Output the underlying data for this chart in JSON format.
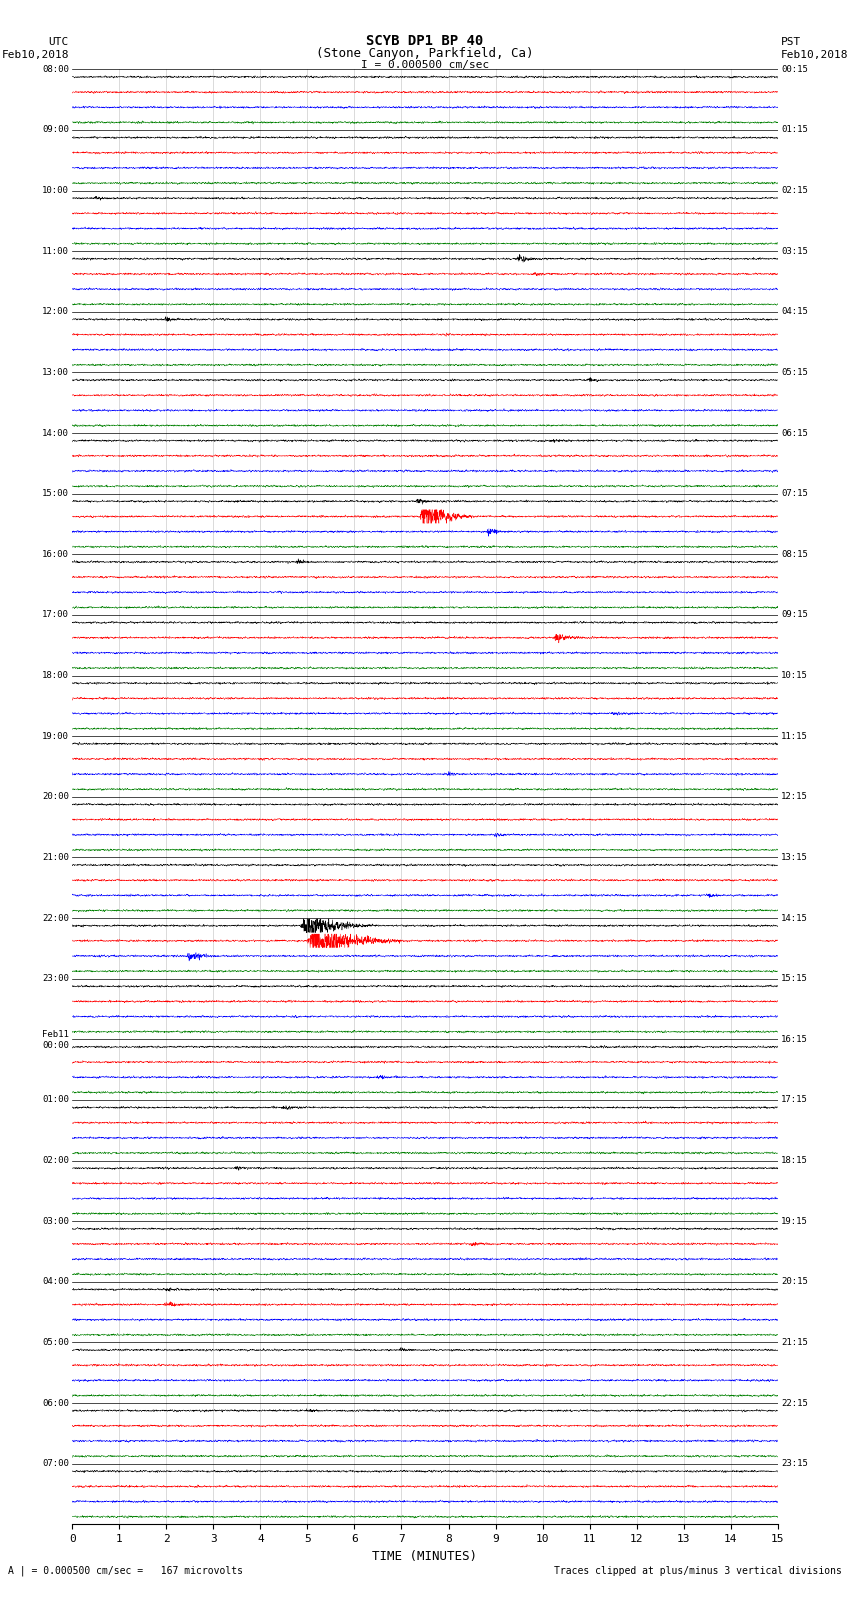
{
  "title_line1": "SCYB DP1 BP 40",
  "title_line2": "(Stone Canyon, Parkfield, Ca)",
  "scale_label": "I = 0.000500 cm/sec",
  "utc_label": "UTC",
  "utc_date": "Feb10,2018",
  "pst_label": "PST",
  "pst_date": "Feb10,2018",
  "xlabel": "TIME (MINUTES)",
  "bottom_left": "A | = 0.000500 cm/sec =   167 microvolts",
  "bottom_right": "Traces clipped at plus/minus 3 vertical divisions",
  "background_color": "#ffffff",
  "trace_colors": [
    "black",
    "red",
    "blue",
    "green"
  ],
  "utc_times": [
    "08:00",
    "09:00",
    "10:00",
    "11:00",
    "12:00",
    "13:00",
    "14:00",
    "15:00",
    "16:00",
    "17:00",
    "18:00",
    "19:00",
    "20:00",
    "21:00",
    "22:00",
    "23:00",
    "Feb11\n00:00",
    "01:00",
    "02:00",
    "03:00",
    "04:00",
    "05:00",
    "06:00",
    "07:00"
  ],
  "pst_times": [
    "00:15",
    "01:15",
    "02:15",
    "03:15",
    "04:15",
    "05:15",
    "06:15",
    "07:15",
    "08:15",
    "09:15",
    "10:15",
    "11:15",
    "12:15",
    "13:15",
    "14:15",
    "15:15",
    "16:15",
    "17:15",
    "18:15",
    "19:15",
    "20:15",
    "21:15",
    "22:15",
    "23:15"
  ],
  "num_rows": 24,
  "traces_per_row": 4,
  "minutes": 15,
  "noise_scale": 0.012,
  "event_params": [
    {
      "row": 7,
      "trace": 1,
      "minute": 7.5,
      "scale": 18.0,
      "duration": 0.25
    },
    {
      "row": 7,
      "trace": 2,
      "minute": 8.85,
      "scale": 4.0,
      "duration": 0.12
    },
    {
      "row": 7,
      "trace": 0,
      "minute": 7.35,
      "scale": 3.0,
      "duration": 0.12
    },
    {
      "row": 8,
      "trace": 0,
      "minute": 4.8,
      "scale": 2.5,
      "duration": 0.12
    },
    {
      "row": 9,
      "trace": 1,
      "minute": 10.3,
      "scale": 5.0,
      "duration": 0.18
    },
    {
      "row": 14,
      "trace": 2,
      "minute": 2.5,
      "scale": 6.0,
      "duration": 0.15
    },
    {
      "row": 14,
      "trace": 0,
      "minute": 5.0,
      "scale": 14.0,
      "duration": 0.35
    },
    {
      "row": 14,
      "trace": 1,
      "minute": 5.2,
      "scale": 18.0,
      "duration": 0.45
    },
    {
      "row": 3,
      "trace": 0,
      "minute": 9.5,
      "scale": 3.5,
      "duration": 0.15
    },
    {
      "row": 3,
      "trace": 1,
      "minute": 9.8,
      "scale": 2.5,
      "duration": 0.12
    },
    {
      "row": 4,
      "trace": 0,
      "minute": 2.0,
      "scale": 2.5,
      "duration": 0.12
    },
    {
      "row": 16,
      "trace": 2,
      "minute": 6.5,
      "scale": 2.5,
      "duration": 0.15
    },
    {
      "row": 10,
      "trace": 2,
      "minute": 11.5,
      "scale": 2.0,
      "duration": 0.12
    },
    {
      "row": 11,
      "trace": 2,
      "minute": 8.0,
      "scale": 2.0,
      "duration": 0.12
    },
    {
      "row": 12,
      "trace": 2,
      "minute": 9.0,
      "scale": 2.0,
      "duration": 0.12
    },
    {
      "row": 19,
      "trace": 1,
      "minute": 8.5,
      "scale": 2.5,
      "duration": 0.12
    },
    {
      "row": 20,
      "trace": 0,
      "minute": 2.0,
      "scale": 2.0,
      "duration": 0.12
    },
    {
      "row": 20,
      "trace": 1,
      "minute": 2.0,
      "scale": 3.0,
      "duration": 0.15
    },
    {
      "row": 5,
      "trace": 0,
      "minute": 11.0,
      "scale": 2.0,
      "duration": 0.12
    },
    {
      "row": 2,
      "trace": 0,
      "minute": 0.5,
      "scale": 2.0,
      "duration": 0.12
    },
    {
      "row": 6,
      "trace": 0,
      "minute": 10.2,
      "scale": 2.0,
      "duration": 0.12
    },
    {
      "row": 13,
      "trace": 2,
      "minute": 13.5,
      "scale": 2.0,
      "duration": 0.12
    },
    {
      "row": 17,
      "trace": 0,
      "minute": 4.5,
      "scale": 2.5,
      "duration": 0.15
    },
    {
      "row": 18,
      "trace": 0,
      "minute": 3.5,
      "scale": 2.0,
      "duration": 0.12
    },
    {
      "row": 21,
      "trace": 0,
      "minute": 7.0,
      "scale": 2.0,
      "duration": 0.12
    },
    {
      "row": 22,
      "trace": 0,
      "minute": 5.0,
      "scale": 2.0,
      "duration": 0.12
    }
  ]
}
